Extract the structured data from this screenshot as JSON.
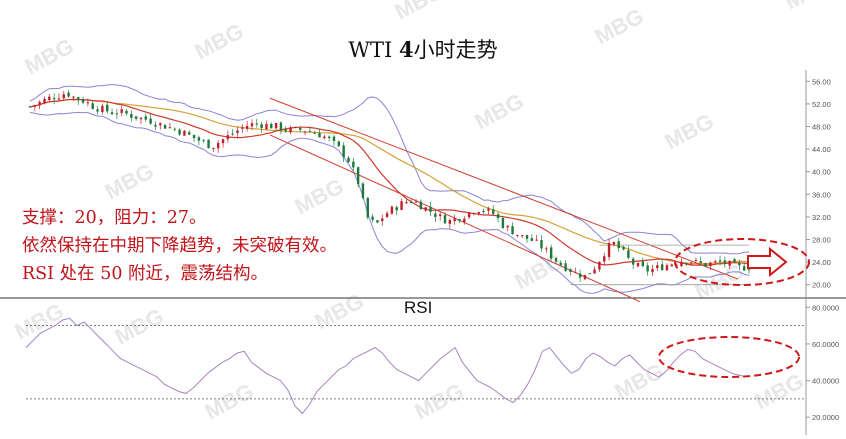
{
  "chart_data": [
    {
      "type": "candlestick",
      "title": "WTI 4小时走势",
      "bold_part": "4",
      "title_left": "WTI ",
      "title_right": "小时走势",
      "ylim": [
        18,
        58
      ],
      "yticks": [
        "56.00",
        "52.00",
        "48.00",
        "44.00",
        "40.00",
        "36.00",
        "32.00",
        "28.00",
        "24.00",
        "20.00"
      ],
      "ytick_values": [
        56,
        52,
        48,
        44,
        40,
        36,
        32,
        28,
        24,
        20
      ],
      "support": 20,
      "resistance": 27,
      "close_path": [
        51.5,
        52.2,
        53.0,
        53.4,
        54.0,
        53.0,
        52.5,
        51.5,
        51.0,
        50.5,
        50.5,
        50.0,
        49.5,
        49.2,
        48.5,
        48.0,
        47.5,
        46.8,
        46.0,
        45.2,
        44.5,
        45.5,
        46.5,
        47.5,
        48.3,
        48.5,
        48.2,
        48.0,
        47.5,
        47.3,
        47.5,
        47.0,
        46.5,
        45.5,
        44.0,
        42.0,
        38.5,
        32.0,
        30.5,
        32.5,
        33.5,
        34.5,
        35.0,
        34.0,
        33.0,
        32.0,
        31.2,
        31.8,
        32.5,
        33.5,
        33.2,
        32.5,
        30.5,
        29.5,
        28.5,
        28.0,
        27.0,
        25.5,
        24.0,
        23.0,
        22.0,
        21.5,
        23.0,
        25.5,
        27.5,
        26.0,
        24.0,
        23.0,
        22.5,
        23.0,
        23.5,
        24.0,
        24.5,
        24.0,
        23.5,
        23.8,
        24.0,
        23.5,
        23.0,
        23.2
      ],
      "bands_note": "",
      "annotations": [
        "支撑：20，阻力：27。",
        "依然保持在中期下降趋势，未突破有效。",
        "RSI 处在 50 附近，震荡结构。"
      ],
      "colors": {
        "up": "#c41e2a",
        "down": "#1e7a3c",
        "ema_fast": "#cc3b2e",
        "ema_slow": "#d6a23a",
        "band": "#8a84d8",
        "channel": "#d23a2e",
        "highlight": "#d01818"
      }
    },
    {
      "type": "line",
      "title": "RSI",
      "ylim": [
        13,
        84
      ],
      "yticks": [
        "80.0000",
        "60.0000",
        "40.0000",
        "20.0000"
      ],
      "ytick_values": [
        80,
        60,
        40,
        20
      ],
      "ref_lines": [
        70,
        30
      ],
      "values": [
        58,
        62,
        66,
        68,
        70,
        73,
        74,
        70,
        72,
        68,
        64,
        60,
        56,
        52,
        50,
        48,
        46,
        44,
        42,
        38,
        36,
        34,
        33,
        36,
        40,
        44,
        47,
        50,
        52,
        55,
        56,
        50,
        47,
        44,
        42,
        40,
        35,
        26,
        22,
        27,
        34,
        38,
        42,
        46,
        48,
        52,
        54,
        56,
        58,
        55,
        50,
        46,
        44,
        42,
        40,
        44,
        48,
        52,
        55,
        58,
        50,
        45,
        40,
        38,
        36,
        33,
        30,
        28,
        32,
        38,
        46,
        56,
        58,
        53,
        48,
        44,
        46,
        52,
        55,
        53,
        50,
        48,
        52,
        54,
        50,
        46,
        44,
        42,
        45,
        50,
        54,
        57,
        56,
        52,
        50,
        48,
        46,
        44,
        43,
        42
      ],
      "color": "#a883bd"
    }
  ],
  "watermark": "MBG"
}
